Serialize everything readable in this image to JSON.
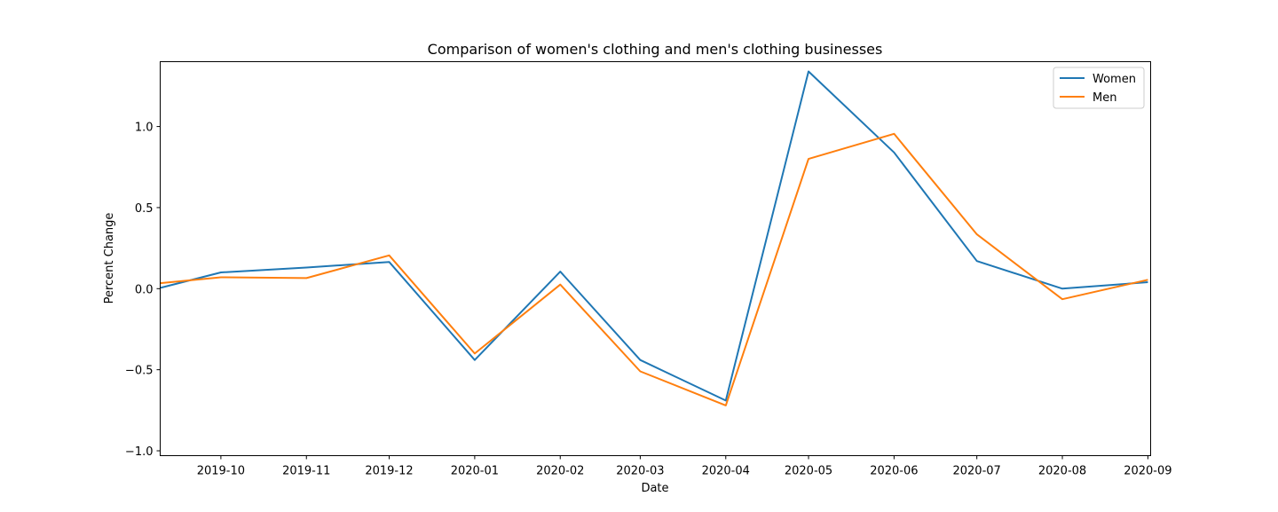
{
  "chart_data": {
    "type": "line",
    "title": "Comparison of women's clothing and men's clothing businesses",
    "xlabel": "Date",
    "ylabel": "Percent Change",
    "x": [
      "2019-09-01",
      "2019-10-01",
      "2019-11-01",
      "2019-12-01",
      "2020-01-01",
      "2020-02-01",
      "2020-03-01",
      "2020-04-01",
      "2020-05-01",
      "2020-06-01",
      "2020-07-01",
      "2020-08-01",
      "2020-09-01"
    ],
    "series": [
      {
        "name": "Women",
        "color": "#1f77b4",
        "values": [
          -0.03,
          0.1,
          0.13,
          0.165,
          -0.44,
          0.105,
          -0.44,
          -0.69,
          1.34,
          0.84,
          0.17,
          0.0,
          0.04
        ]
      },
      {
        "name": "Men",
        "color": "#ff7f0e",
        "values": [
          0.02,
          0.07,
          0.065,
          0.205,
          -0.4,
          0.025,
          -0.51,
          -0.72,
          0.8,
          0.955,
          0.335,
          -0.065,
          0.055
        ]
      }
    ],
    "x_ticks": [
      "2019-10",
      "2019-11",
      "2019-12",
      "2020-01",
      "2020-02",
      "2020-03",
      "2020-04",
      "2020-05",
      "2020-06",
      "2020-07",
      "2020-08",
      "2020-09"
    ],
    "y_ticks": [
      "−1.0",
      "−0.5",
      "0.0",
      "0.5",
      "1.0"
    ],
    "ylim": [
      -1.03,
      1.4
    ],
    "xlim": [
      "2019-09-09",
      "2020-09-02"
    ],
    "grid": false,
    "legend_position": "top-right"
  }
}
